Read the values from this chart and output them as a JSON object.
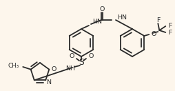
{
  "background_color": "#fdf6ec",
  "line_color": "#2a2a2a",
  "line_width": 1.3,
  "font_size": 6.8,
  "figsize": [
    2.54,
    1.32
  ],
  "dpi": 100,
  "xlim": [
    0,
    254
  ],
  "ylim": [
    0,
    132
  ]
}
